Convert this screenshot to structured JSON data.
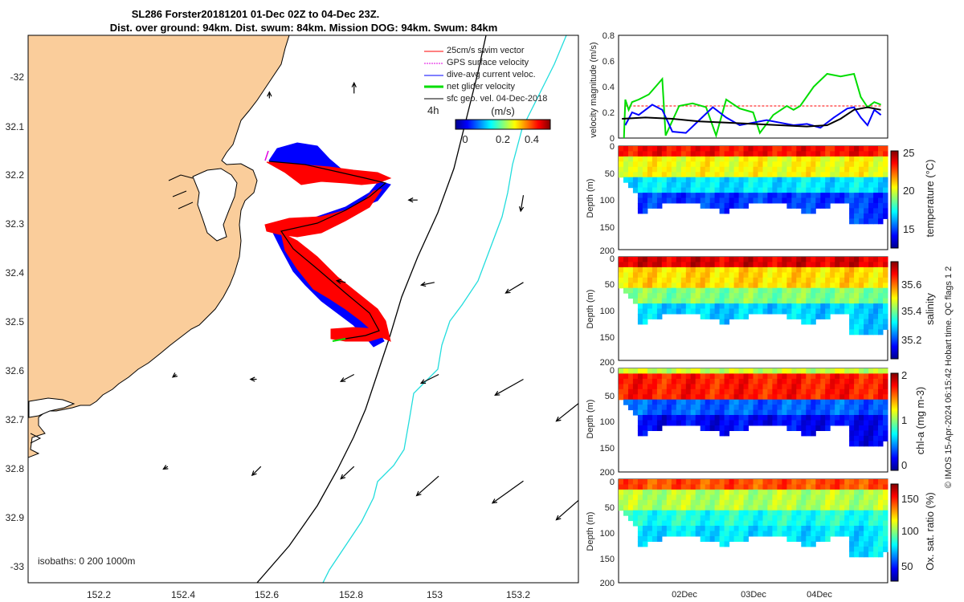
{
  "header": {
    "title_line1": "SL286 Forster20181201 01-Dec 02Z to 04-Dec 23Z.",
    "title_line2": "Dist. over ground: 94km. Dist. swum: 84km. Mission DOG: 94km. Swum: 84km"
  },
  "credit": "© IMOS 15-Apr-2024 06:15:42 Hobart time. QC flags 1  2",
  "colors": {
    "land": "#FACD9B",
    "swim_vector": "#ff0000",
    "gps_velocity": "#e000e0",
    "dive_current": "#0000ff",
    "net_velocity": "#00dd00",
    "geo_velocity": "#000000",
    "isobath_200": "#000000",
    "isobath_1000": "#22dddd"
  },
  "chart_data": [
    {
      "type": "map",
      "x_ticks": [
        "152.2",
        "152.4",
        "152.6",
        "152.8",
        "153",
        "153.2"
      ],
      "y_ticks": [
        "-32",
        "32.1",
        "32.2",
        "32.3",
        "32.4",
        "32.5",
        "32.6",
        "32.7",
        "32.8",
        "32.9",
        "-33"
      ],
      "xlim": [
        152.03,
        153.33
      ],
      "ylim": [
        -33.04,
        -31.91
      ],
      "legend": {
        "position": "top-right",
        "items": [
          {
            "label": "25cm/s swim vector",
            "color": "#ff0000"
          },
          {
            "label": "GPS surface velocity",
            "color": "#e000e0"
          },
          {
            "label": "dive-avg current veloc.",
            "color": "#0000ff"
          },
          {
            "label": "net glider velocity",
            "color": "#00dd00"
          },
          {
            "label": "sfc geo. vel. 04-Dec-2018",
            "color": "#000000"
          }
        ],
        "time_step_label": "4h"
      },
      "colorbar": {
        "unit_label": "(m/s)",
        "ticks": [
          "0",
          "0.2",
          "0.4"
        ],
        "range": [
          0,
          0.5
        ]
      },
      "isobaths_label": "isobaths: 0   200  1000m",
      "glider_track": [
        [
          152.6,
          -32.172
        ],
        [
          152.68,
          -32.178
        ],
        [
          152.75,
          -32.19
        ],
        [
          152.81,
          -32.205
        ],
        [
          152.865,
          -32.21
        ],
        [
          152.82,
          -32.255
        ],
        [
          152.72,
          -32.285
        ],
        [
          152.63,
          -32.31
        ],
        [
          152.68,
          -32.36
        ],
        [
          152.75,
          -32.43
        ],
        [
          152.81,
          -32.47
        ],
        [
          152.85,
          -32.51
        ],
        [
          152.8,
          -32.53
        ],
        [
          152.76,
          -32.535
        ]
      ],
      "geostrophic_vectors": [
        {
          "lon": 152.6,
          "lat": -32.04,
          "u": 0.0,
          "v": 0.07
        },
        {
          "lon": 152.8,
          "lat": -32.03,
          "u": 0.0,
          "v": 0.12
        },
        {
          "lon": 152.95,
          "lat": -32.25,
          "u": -0.1,
          "v": 0.0
        },
        {
          "lon": 153.2,
          "lat": -32.24,
          "u": -0.03,
          "v": -0.18
        },
        {
          "lon": 152.78,
          "lat": -32.42,
          "u": -0.1,
          "v": 0.02
        },
        {
          "lon": 152.99,
          "lat": -32.42,
          "u": -0.15,
          "v": -0.03
        },
        {
          "lon": 153.2,
          "lat": -32.42,
          "u": -0.2,
          "v": -0.12
        },
        {
          "lon": 152.38,
          "lat": -32.61,
          "u": -0.04,
          "v": -0.03
        },
        {
          "lon": 152.57,
          "lat": -32.62,
          "u": -0.07,
          "v": 0.0
        },
        {
          "lon": 152.8,
          "lat": -32.61,
          "u": -0.15,
          "v": -0.08
        },
        {
          "lon": 153.0,
          "lat": -32.61,
          "u": -0.2,
          "v": -0.1
        },
        {
          "lon": 153.2,
          "lat": -32.62,
          "u": -0.32,
          "v": -0.18
        },
        {
          "lon": 153.33,
          "lat": -32.67,
          "u": -0.25,
          "v": -0.2
        },
        {
          "lon": 152.36,
          "lat": -32.8,
          "u": -0.05,
          "v": -0.03
        },
        {
          "lon": 152.58,
          "lat": -32.8,
          "u": -0.1,
          "v": -0.1
        },
        {
          "lon": 152.8,
          "lat": -32.8,
          "u": -0.15,
          "v": -0.14
        },
        {
          "lon": 153.0,
          "lat": -32.82,
          "u": -0.25,
          "v": -0.22
        },
        {
          "lon": 153.2,
          "lat": -32.83,
          "u": -0.35,
          "v": -0.25
        },
        {
          "lon": 153.33,
          "lat": -32.87,
          "u": -0.25,
          "v": -0.22
        }
      ]
    },
    {
      "type": "line",
      "ylabel": "velocity magnitude (m/s)",
      "ylim": [
        0,
        0.8
      ],
      "y_ticks": [
        "0",
        "0.2",
        "0.4",
        "0.6",
        "0.8"
      ],
      "x_ticks": [
        "02Dec",
        "03Dec",
        "04Dec"
      ],
      "x_range": [
        "01-Dec 00Z",
        "05-Dec 00Z"
      ],
      "series": [
        {
          "color": "#ff0000",
          "x": [
            0.1,
            0.3,
            0.6,
            1.0,
            1.5,
            2.0,
            2.5,
            3.0,
            3.5,
            3.9
          ],
          "values": [
            0.25,
            0.25,
            0.25,
            0.25,
            0.25,
            0.25,
            0.25,
            0.25,
            0.25,
            0.25
          ]
        },
        {
          "color": "#00dd00",
          "x": [
            0.08,
            0.1,
            0.15,
            0.2,
            0.3,
            0.45,
            0.55,
            0.65,
            0.7,
            0.9,
            1.1,
            1.3,
            1.45,
            1.6,
            1.8,
            2.0,
            2.1,
            2.3,
            2.5,
            2.6,
            2.7,
            2.9,
            3.1,
            3.3,
            3.5,
            3.6,
            3.7,
            3.8,
            3.9
          ],
          "values": [
            0.0,
            0.3,
            0.22,
            0.28,
            0.3,
            0.34,
            0.4,
            0.46,
            0.02,
            0.25,
            0.27,
            0.24,
            0.02,
            0.3,
            0.23,
            0.2,
            0.04,
            0.18,
            0.25,
            0.22,
            0.25,
            0.4,
            0.5,
            0.48,
            0.5,
            0.32,
            0.24,
            0.28,
            0.26
          ]
        },
        {
          "color": "#0000ff",
          "x": [
            0.1,
            0.2,
            0.3,
            0.5,
            0.65,
            0.8,
            1.0,
            1.2,
            1.4,
            1.6,
            1.8,
            2.0,
            2.2,
            2.4,
            2.6,
            2.8,
            3.0,
            3.2,
            3.4,
            3.5,
            3.6,
            3.7,
            3.8,
            3.9
          ],
          "values": [
            0.1,
            0.2,
            0.18,
            0.26,
            0.22,
            0.05,
            0.04,
            0.14,
            0.24,
            0.16,
            0.1,
            0.12,
            0.14,
            0.12,
            0.1,
            0.11,
            0.08,
            0.16,
            0.23,
            0.24,
            0.16,
            0.1,
            0.22,
            0.18
          ]
        },
        {
          "color": "#000000",
          "x": [
            0.05,
            0.4,
            0.8,
            1.2,
            1.6,
            2.0,
            2.4,
            2.8,
            3.1,
            3.3,
            3.5,
            3.7,
            3.9
          ],
          "values": [
            0.15,
            0.16,
            0.15,
            0.13,
            0.12,
            0.11,
            0.1,
            0.09,
            0.1,
            0.15,
            0.22,
            0.24,
            0.22
          ]
        }
      ]
    },
    {
      "type": "heatmap",
      "ylabel": "Depth (m)",
      "colorbar_label": "temperature (°C)",
      "ylim": [
        200,
        0
      ],
      "y_ticks": [
        "0",
        "50",
        "100",
        "150",
        "200"
      ],
      "colorbar_ticks": [
        "15",
        "20",
        "25"
      ],
      "colorbar_range": [
        12.5,
        25.5
      ]
    },
    {
      "type": "heatmap",
      "ylabel": "Depth (m)",
      "colorbar_label": "salinity",
      "ylim": [
        200,
        0
      ],
      "y_ticks": [
        "0",
        "50",
        "100",
        "150",
        "200"
      ],
      "colorbar_ticks": [
        "35.2",
        "35.4",
        "35.6"
      ],
      "colorbar_range": [
        35.05,
        35.75
      ]
    },
    {
      "type": "heatmap",
      "ylabel": "Depth (m)",
      "colorbar_label": "chl-a (mg m-3)",
      "ylim": [
        200,
        0
      ],
      "y_ticks": [
        "0",
        "50",
        "100",
        "150",
        "200"
      ],
      "colorbar_ticks": [
        "0",
        "1",
        "2"
      ],
      "colorbar_range": [
        0,
        2
      ]
    },
    {
      "type": "heatmap",
      "ylabel": "Depth (m)",
      "colorbar_label": "Ox. sat. ratio (%)",
      "ylim": [
        200,
        0
      ],
      "y_ticks": [
        "0",
        "50",
        "100",
        "150",
        "200"
      ],
      "colorbar_ticks": [
        "50",
        "100",
        "150"
      ],
      "colorbar_range": [
        20,
        175
      ],
      "x_ticks": [
        "02Dec",
        "03Dec",
        "04Dec"
      ]
    }
  ]
}
